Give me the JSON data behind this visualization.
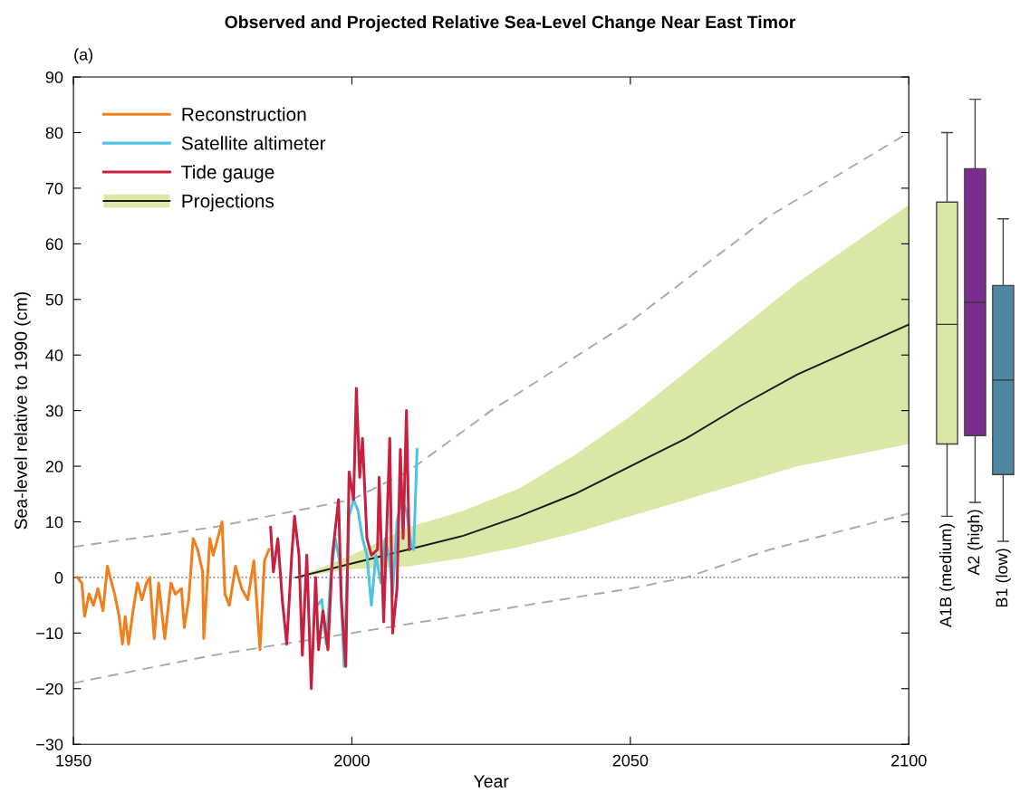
{
  "chart_data": [
    {
      "type": "line",
      "title": "Observed and Projected Relative Sea-Level Change Near East Timor",
      "annotations": [
        "(a)"
      ],
      "xlabel": "Year",
      "ylabel": "Sea-level relative to 1990 (cm)",
      "xlim": [
        1950,
        2100
      ],
      "xticks": [
        1950,
        2000,
        2050,
        2100
      ],
      "ylim": [
        -30,
        90
      ],
      "yticks": [
        -30,
        -20,
        -10,
        0,
        10,
        20,
        30,
        40,
        50,
        60,
        70,
        80,
        90
      ],
      "grid": false,
      "legend": "top left",
      "marker": "none",
      "ref_lines": [
        {
          "axis": "y",
          "value": 0,
          "color": "#888888",
          "line_style": "dotted"
        }
      ],
      "series": [
        {
          "type": "line",
          "color": "#aaaaaa",
          "line_style": "dashed",
          "x": [
            1950,
            1975,
            2000,
            2010,
            2025,
            2050,
            2075,
            2100
          ],
          "values": [
            5.5,
            9,
            14,
            19,
            30,
            46,
            65,
            80
          ]
        },
        {
          "type": "line",
          "color": "#aaaaaa",
          "line_style": "dashed",
          "x": [
            1950,
            1975,
            2000,
            2025,
            2050,
            2060,
            2075,
            2100
          ],
          "values": [
            -19,
            -14,
            -10,
            -6,
            -2,
            0,
            5,
            11.5
          ]
        },
        {
          "name": "Reconstruction",
          "type": "line",
          "color": "#f07f1e",
          "line_style": "solid",
          "x": [
            1950.7,
            1951.5,
            1952.0,
            1952.8,
            1953.6,
            1954.4,
            1955.3,
            1956.1,
            1956.6,
            1957.4,
            1958.2,
            1958.8,
            1959.3,
            1959.9,
            1960.7,
            1961.5,
            1962.3,
            1963.1,
            1963.7,
            1964.5,
            1965.3,
            1966.4,
            1967.5,
            1968.3,
            1969.4,
            1969.9,
            1970.7,
            1971.5,
            1972.3,
            1973.2,
            1973.4,
            1974.5,
            1975.1,
            1975.9,
            1976.7,
            1977.2,
            1978.0,
            1979.1,
            1980.2,
            1981.3,
            1982.4,
            1983.5,
            1984.3,
            1985.1
          ],
          "values": [
            0,
            -1,
            -7,
            -3,
            -5,
            -2,
            -6,
            2,
            0,
            -3,
            -7,
            -12,
            -7,
            -12,
            -6,
            -1,
            -4,
            -1,
            0,
            -11,
            -1,
            -11,
            -1,
            -3,
            -2,
            -9,
            -4,
            7,
            5,
            1,
            -11,
            7,
            4,
            7,
            10,
            -3,
            -5,
            2,
            -2,
            -4,
            3,
            -13,
            3,
            5
          ]
        },
        {
          "name": "Satellite altimeter",
          "type": "line",
          "color": "#4fc3df",
          "line_style": "solid",
          "x": [
            1993.8,
            1994.6,
            1995.4,
            1996.2,
            1997.0,
            1997.8,
            1998.6,
            1999.5,
            2000.3,
            2001.1,
            2001.9,
            2002.7,
            2003.5,
            2004.3,
            2005.2,
            2006.0,
            2006.8,
            2007.3,
            2008.1,
            2008.9,
            2009.8,
            2010.6,
            2011.1,
            2011.7
          ],
          "values": [
            -5,
            -4,
            -12,
            0,
            7,
            3,
            -16,
            11,
            14,
            12,
            7,
            4,
            -5,
            4,
            -1,
            7,
            3,
            -3,
            10,
            14,
            12,
            6,
            5,
            23
          ]
        },
        {
          "name": "Tide gauge",
          "type": "line",
          "color": "#c8203f",
          "line_style": "solid",
          "x": [
            1985.4,
            1985.9,
            1986.7,
            1987.5,
            1988.3,
            1989.2,
            1989.7,
            1990.5,
            1991.1,
            1991.9,
            1992.7,
            1993.5,
            1994.0,
            1994.8,
            1995.7,
            1996.5,
            1997.6,
            1998.1,
            1998.9,
            1999.5,
            2000.3,
            2000.8,
            2001.4,
            2001.9,
            2002.7,
            2003.5,
            2004.6,
            2004.9,
            2005.7,
            2006.8,
            2007.3,
            2008.1,
            2008.7,
            2009.2,
            2009.8,
            2010.3
          ],
          "values": [
            9,
            1,
            7,
            -4,
            -12,
            4,
            11,
            4,
            -14,
            4,
            -20,
            0,
            -13,
            -6,
            -13,
            4,
            14,
            -4,
            -16,
            19,
            14,
            34,
            18,
            25,
            7,
            4,
            5,
            18,
            -8,
            25,
            -10,
            -2,
            23,
            7,
            30,
            5
          ]
        },
        {
          "name": "Projections",
          "type": "line",
          "color": "#1a1a1a",
          "line_style": "solid",
          "x": [
            1990,
            2000,
            2010,
            2020,
            2030,
            2040,
            2050,
            2060,
            2070,
            2080,
            2090,
            2100
          ],
          "values": [
            0,
            2.5,
            5,
            7.5,
            11,
            15,
            20,
            25,
            31,
            36.5,
            41,
            45.5
          ],
          "lower": [
            0,
            1.5,
            2,
            3.5,
            5.5,
            8,
            11,
            14,
            17,
            20,
            22,
            24
          ],
          "upper": [
            0,
            4,
            9,
            12,
            16,
            22,
            29,
            37,
            45,
            53,
            60,
            67
          ]
        }
      ]
    },
    {
      "type": "box",
      "ylim": [
        -30,
        90
      ],
      "tick_labels": "x",
      "categories": [
        "A1B (medium)",
        "A2 (high)",
        "B1 (low)"
      ],
      "colors": [
        "#d9e8a6",
        "#7b2d8e",
        "#4f87a3"
      ],
      "boxes": [
        {
          "low": 11,
          "q1": 24,
          "median": 45.5,
          "q3": 67.5,
          "high": 80
        },
        {
          "low": 13.5,
          "q1": 25.5,
          "median": 49.5,
          "q3": 73.5,
          "high": 86
        },
        {
          "low": 6.5,
          "q1": 18.5,
          "median": 35.5,
          "q3": 52.5,
          "high": 64.5
        }
      ]
    }
  ]
}
